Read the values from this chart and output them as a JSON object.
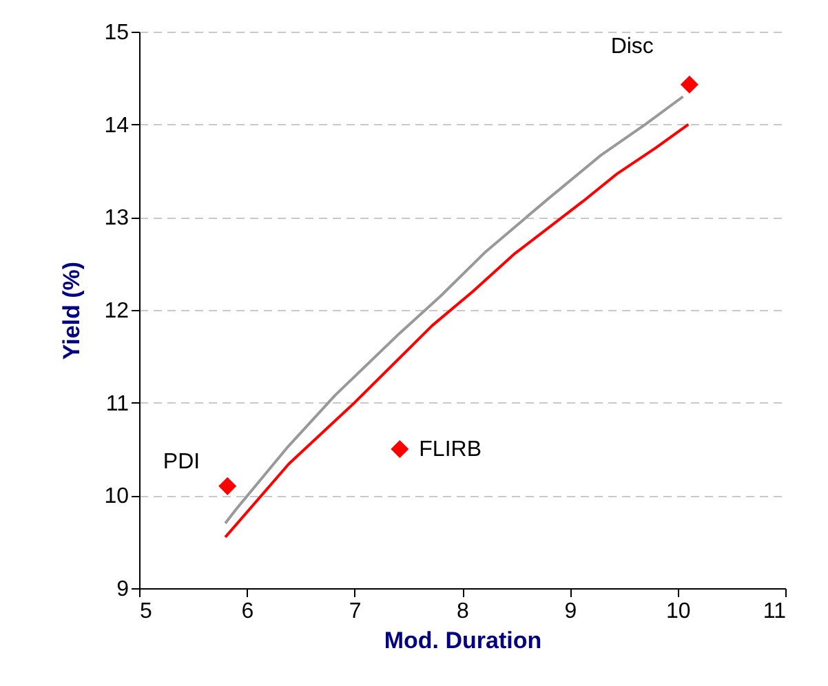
{
  "chart_data": {
    "type": "line",
    "xlabel": "Mod. Duration",
    "ylabel": "Yield (%)",
    "xlim": [
      5,
      11
    ],
    "xticks": [
      5,
      6,
      7,
      8,
      9,
      10,
      11
    ],
    "ylim": [
      9,
      15
    ],
    "yticks": [
      9,
      10,
      11,
      12,
      13,
      14,
      15
    ],
    "grid": "y",
    "series": [
      {
        "color": "#999999",
        "x": [
          5.8,
          5.9,
          6.37,
          6.82,
          7.42,
          7.8,
          8.22,
          8.8,
          9.29,
          9.7,
          10.05
        ],
        "values": [
          9.7,
          9.85,
          10.51,
          11.08,
          11.75,
          12.15,
          12.63,
          13.2,
          13.67,
          14.0,
          14.3
        ]
      },
      {
        "color": "#ff0000",
        "x": [
          5.8,
          6.39,
          7.0,
          7.72,
          8.1,
          8.48,
          9.12,
          9.44,
          9.8,
          10.1
        ],
        "values": [
          9.55,
          10.34,
          11.0,
          11.83,
          12.2,
          12.6,
          13.17,
          13.47,
          13.75,
          14.0
        ]
      },
      {
        "type": "scatter",
        "color": "#ff0000",
        "marker": "diamond",
        "x": [
          5.82,
          7.42,
          10.11
        ],
        "values": [
          10.1,
          10.5,
          14.43
        ]
      }
    ],
    "annotations": [
      {
        "text": "PDI",
        "x": 5.82,
        "y": 10.1
      },
      {
        "text": "FLIRB",
        "x": 7.42,
        "y": 10.5
      },
      {
        "text": "Disc",
        "x": 10.11,
        "y": 14.43
      }
    ]
  }
}
